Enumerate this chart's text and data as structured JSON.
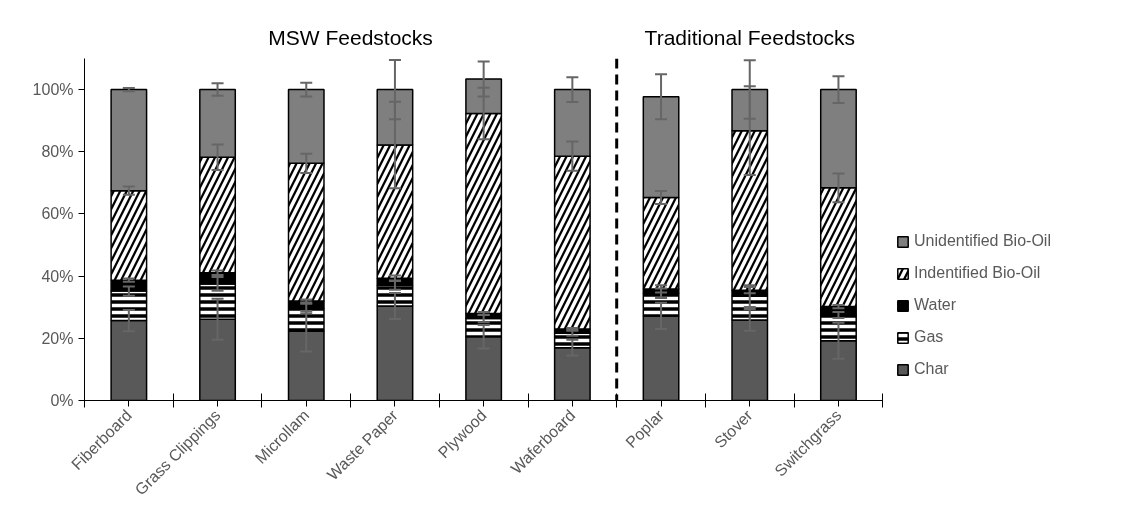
{
  "chart_data": {
    "type": "bar",
    "stacked": true,
    "categories": [
      "Fiberboard",
      "Grass Clippings",
      "Microllam",
      "Waste Paper",
      "Plywood",
      "Waferboard",
      "Poplar",
      "Stover",
      "Switchgrass"
    ],
    "series": [
      {
        "name": "Char",
        "color": "#595959",
        "values": [
          25.7,
          26.1,
          22.3,
          30.4,
          20.5,
          17.0,
          27.2,
          25.9,
          19.2
        ],
        "errors": [
          3.4,
          6.6,
          6.5,
          4.2,
          3.8,
          2.5,
          4.2,
          3.5,
          5.8
        ]
      },
      {
        "name": "Gas",
        "color": "#000000",
        "values": [
          9.5,
          11.4,
          7.3,
          6.7,
          5.9,
          4.6,
          7.3,
          7.7,
          8.3
        ],
        "errors": [
          1.5,
          2.2,
          1.5,
          1.5,
          1.2,
          0.8,
          1.5,
          3.5,
          1.0
        ]
      },
      {
        "name": "Water",
        "color": "#000000",
        "values": [
          3.5,
          3.6,
          2.4,
          2.2,
          1.6,
          1.4,
          1.4,
          1.9,
          2.7
        ],
        "errors": [
          0.5,
          0.7,
          0.5,
          0.9,
          0.5,
          0.3,
          1.2,
          1.0,
          0.5
        ]
      },
      {
        "name": "Indentified Bio-Oil",
        "color": "#000000",
        "values": [
          28.8,
          37.1,
          44.3,
          42.9,
          64.3,
          55.6,
          29.4,
          51.3,
          38.2
        ],
        "errors": [
          1.3,
          4.1,
          3.1,
          13.9,
          8.3,
          4.7,
          2.1,
          14.3,
          4.6
        ]
      },
      {
        "name": "Unidentified Bio-Oil",
        "color": "#7f7f7f",
        "values": [
          32.5,
          21.8,
          23.7,
          17.8,
          11.1,
          21.4,
          32.4,
          13.2,
          31.6
        ],
        "errors": [
          0.5,
          2.0,
          2.2,
          9.5,
          5.6,
          4.0,
          7.2,
          9.4,
          4.3
        ]
      }
    ],
    "ylim": [
      0,
      110
    ],
    "yticks": [
      {
        "value": 0,
        "label": "0%"
      },
      {
        "value": 20,
        "label": "20%"
      },
      {
        "value": 40,
        "label": "40%"
      },
      {
        "value": 60,
        "label": "60%"
      },
      {
        "value": 80,
        "label": "80%"
      },
      {
        "value": 100,
        "label": "100%"
      }
    ],
    "annotations": [
      "MSW Feedstocks",
      "Traditional Feedstocks"
    ],
    "legend": "right"
  }
}
